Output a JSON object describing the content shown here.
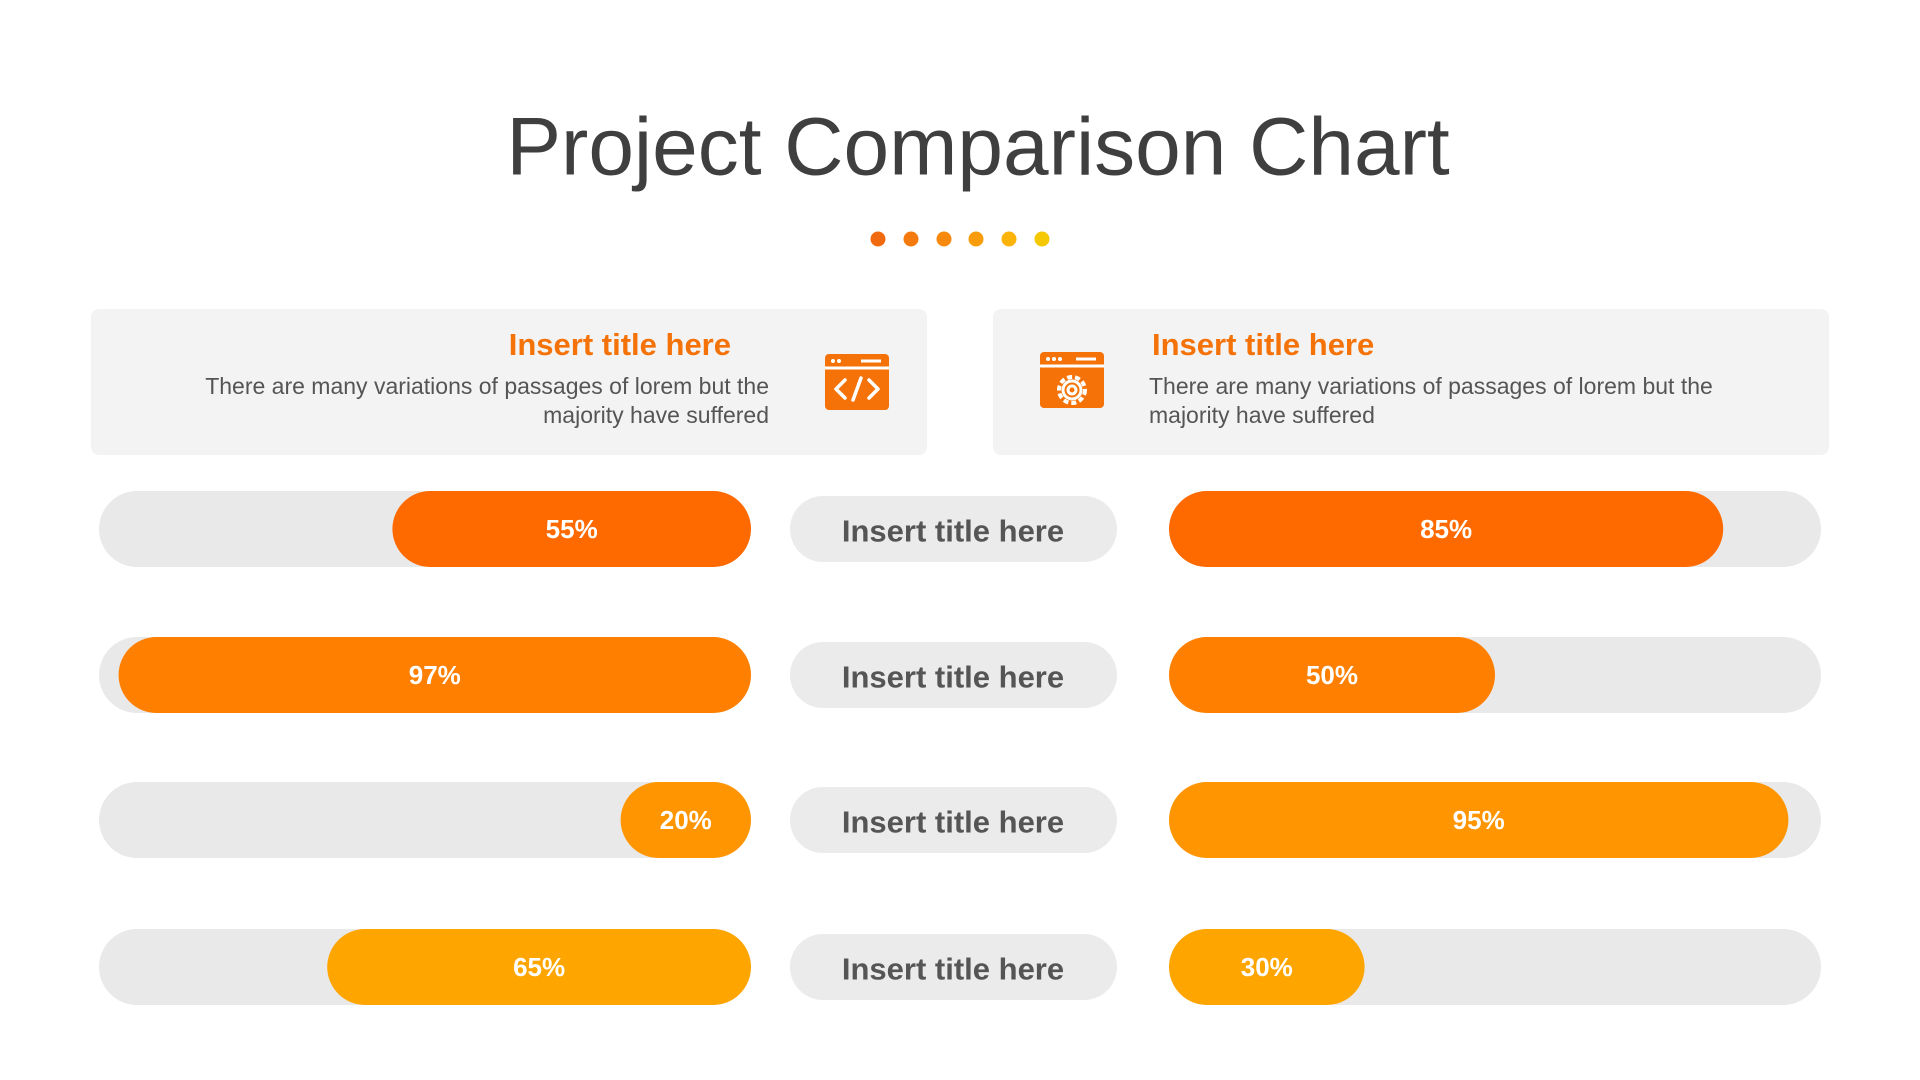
{
  "chart_data": {
    "type": "butterfly",
    "title": "Project Comparison Chart",
    "categories": [
      "Insert title here",
      "Insert title here",
      "Insert title here",
      "Insert title here"
    ],
    "series": [
      {
        "name": "Insert title here",
        "description": "There are many variations of passages of lorem but the majority have suffered",
        "values": [
          55,
          97,
          20,
          65
        ],
        "value_labels": [
          "55%",
          "97%",
          "20%",
          "65%"
        ]
      },
      {
        "name": "Insert title here",
        "description": "There are many variations of passages of lorem but the majority have suffered",
        "values": [
          85,
          50,
          95,
          30
        ],
        "value_labels": [
          "85%",
          "50%",
          "95%",
          "30%"
        ]
      }
    ],
    "colors": [
      "#ff6a00",
      "#ff7f00",
      "#ff9500",
      "#ffa500"
    ],
    "xlim": [
      0,
      100
    ]
  }
}
